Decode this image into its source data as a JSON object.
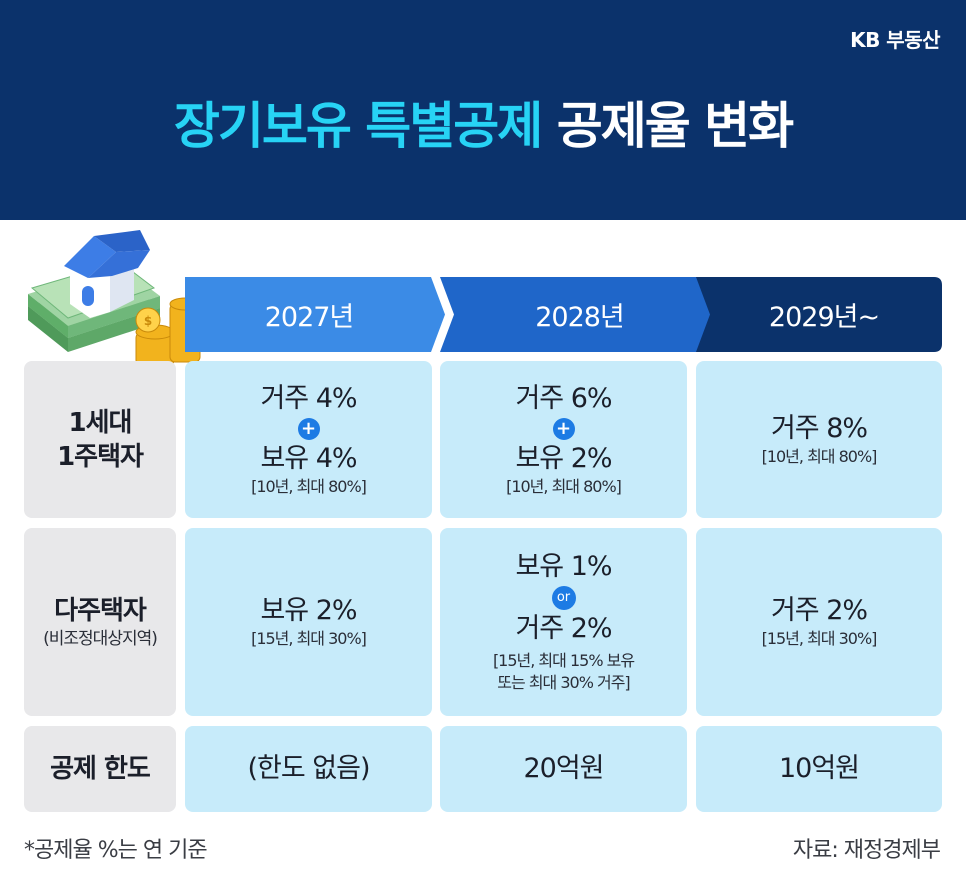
{
  "brand": "KB 부동산",
  "title": {
    "highlight": "장기보유 특별공제",
    "rest": "공제율 변화"
  },
  "years": [
    "2027년",
    "2028년",
    "2029년~"
  ],
  "colors": {
    "header_bg": "#0b326b",
    "title_highlight": "#27d3f5",
    "year1": "#3b8be6",
    "year2": "#1f66c9",
    "year3": "#0b326b",
    "cell_bg": "#c7ebfa",
    "rowhead_bg": "#e8e8ea",
    "badge": "#1d7be4"
  },
  "illustration_icon": "house-cash-coins-icon",
  "rows": [
    {
      "label_line1": "1세대",
      "label_line2": "1주택자",
      "cells": [
        {
          "line1": "거주 4%",
          "joiner": "+",
          "line2": "보유 4%",
          "note": "[10년, 최대 80%]"
        },
        {
          "line1": "거주 6%",
          "joiner": "+",
          "line2": "보유 2%",
          "note": "[10년, 최대 80%]"
        },
        {
          "line1": "거주 8%",
          "note": "[10년, 최대 80%]"
        }
      ]
    },
    {
      "label": "다주택자",
      "sublabel": "(비조정대상지역)",
      "cells": [
        {
          "line1": "보유 2%",
          "note": "[15년, 최대 30%]"
        },
        {
          "line1": "보유 1%",
          "joiner": "or",
          "line2": "거주 2%",
          "note1": "[15년, 최대 15% 보유",
          "note2": "또는 최대 30% 거주]"
        },
        {
          "line1": "거주 2%",
          "note": "[15년, 최대 30%]"
        }
      ]
    },
    {
      "label": "공제 한도",
      "cells": [
        {
          "line1": "(한도 없음)"
        },
        {
          "line1": "20억원"
        },
        {
          "line1": "10억원"
        }
      ]
    }
  ],
  "footnote": "*공제율 %는 연 기준",
  "source": "자료: 재정경제부"
}
